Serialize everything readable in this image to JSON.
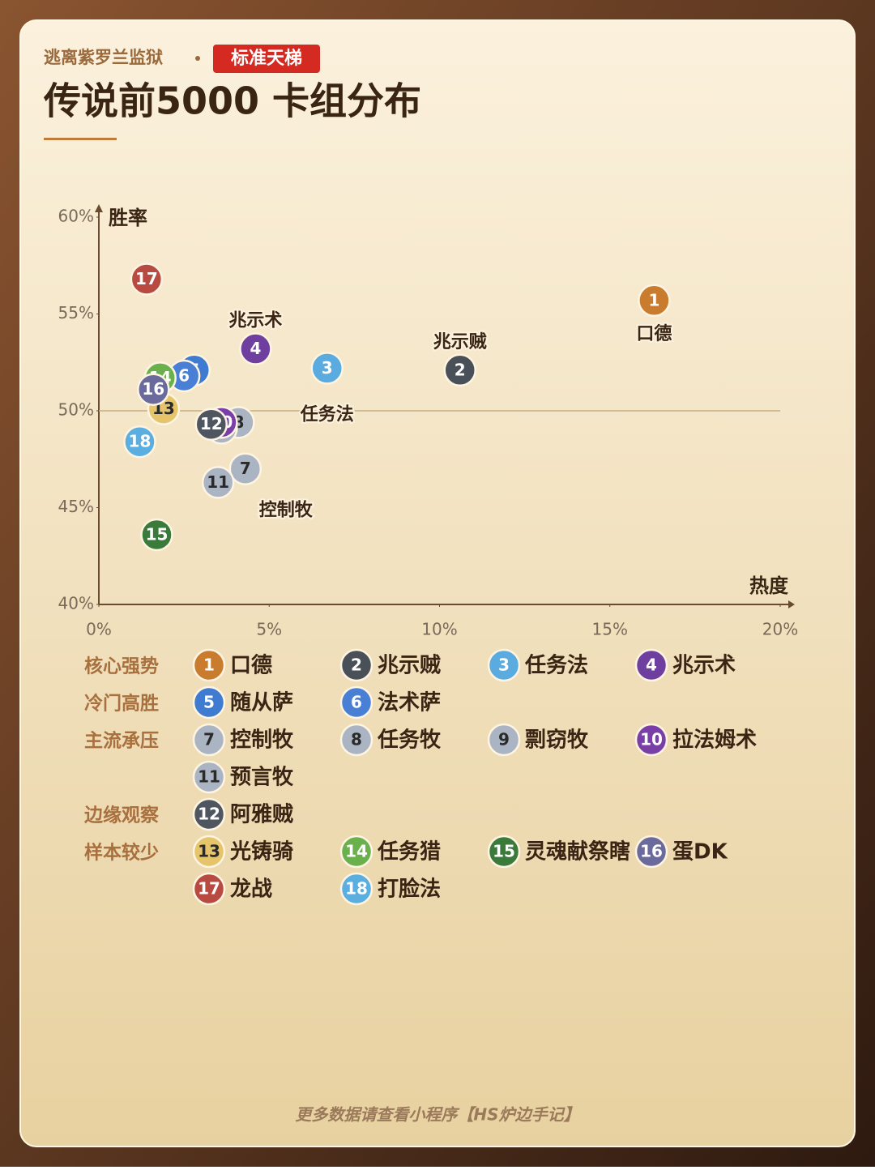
{
  "header": {
    "source": "逃离紫罗兰监狱",
    "badge": "标准天梯",
    "title": "传说前5000 卡组分布"
  },
  "chart_data": {
    "type": "scatter",
    "x_label": "热度",
    "y_label": "胜率",
    "xlim": [
      0,
      20
    ],
    "ylim": [
      40,
      60
    ],
    "xticks": [
      {
        "value": 0,
        "label": "0%"
      },
      {
        "value": 5,
        "label": "5%"
      },
      {
        "value": 10,
        "label": "10%"
      },
      {
        "value": 15,
        "label": "15%"
      },
      {
        "value": 20,
        "label": "20%"
      }
    ],
    "yticks": [
      {
        "value": 40,
        "label": "40%"
      },
      {
        "value": 45,
        "label": "45%"
      },
      {
        "value": 50,
        "label": "50%"
      },
      {
        "value": 55,
        "label": "55%"
      },
      {
        "value": 60,
        "label": "60%"
      }
    ],
    "hline": 50,
    "series": [
      {
        "name": "口德",
        "label": "1",
        "group": "核心强势",
        "color": "#c97b2e",
        "x": [
          16.3
        ],
        "y": [
          55.7
        ]
      },
      {
        "name": "兆示贼",
        "label": "2",
        "group": "核心强势",
        "color": "#4a5058",
        "x": [
          10.6
        ],
        "y": [
          52.1
        ]
      },
      {
        "name": "任务法",
        "label": "3",
        "group": "核心强势",
        "color": "#5aabe0",
        "x": [
          6.7
        ],
        "y": [
          52.2
        ]
      },
      {
        "name": "兆示术",
        "label": "4",
        "group": "核心强势",
        "color": "#6f3fa0",
        "x": [
          4.6
        ],
        "y": [
          53.2
        ]
      },
      {
        "name": "随从萨",
        "label": "5",
        "group": "冷门高胜",
        "color": "#3f7bd0",
        "x": [
          2.8
        ],
        "y": [
          52.1
        ]
      },
      {
        "name": "法术萨",
        "label": "6",
        "group": "冷门高胜",
        "color": "#4a7fd6",
        "x": [
          2.5
        ],
        "y": [
          51.8
        ]
      },
      {
        "name": "控制牧",
        "label": "7",
        "group": "主流承压",
        "color": "#aab4c2",
        "x": [
          4.3
        ],
        "y": [
          47.0
        ]
      },
      {
        "name": "任务牧",
        "label": "8",
        "group": "主流承压",
        "color": "#aab4c2",
        "x": [
          4.1
        ],
        "y": [
          49.4
        ]
      },
      {
        "name": "剽窃牧",
        "label": "9",
        "group": "主流承压",
        "color": "#aab4c2",
        "x": [
          3.6
        ],
        "y": [
          49.1
        ]
      },
      {
        "name": "拉法姆术",
        "label": "10",
        "group": "主流承压",
        "color": "#7a3fa6",
        "x": [
          3.6
        ],
        "y": [
          49.4
        ]
      },
      {
        "name": "预言牧",
        "label": "11",
        "group": "主流承压",
        "color": "#aab4c2",
        "x": [
          3.5
        ],
        "y": [
          46.3
        ]
      },
      {
        "name": "阿雅贼",
        "label": "12",
        "group": "边缘观察",
        "color": "#4f5660",
        "x": [
          3.3
        ],
        "y": [
          49.3
        ]
      },
      {
        "name": "光铸骑",
        "label": "13",
        "group": "样本较少",
        "color": "#e6c46a",
        "x": [
          1.9
        ],
        "y": [
          50.1
        ]
      },
      {
        "name": "任务猎",
        "label": "14",
        "group": "样本较少",
        "color": "#6ab04c",
        "x": [
          1.8
        ],
        "y": [
          51.7
        ]
      },
      {
        "name": "灵魂献祭瞎",
        "label": "15",
        "group": "样本较少",
        "color": "#3a7a3a",
        "x": [
          1.7
        ],
        "y": [
          43.6
        ]
      },
      {
        "name": "蛋DK",
        "label": "16",
        "group": "样本较少",
        "color": "#6a6a9c",
        "x": [
          1.6
        ],
        "y": [
          51.1
        ]
      },
      {
        "name": "龙战",
        "label": "17",
        "group": "样本较少",
        "color": "#b84a42",
        "x": [
          1.4
        ],
        "y": [
          56.8
        ]
      },
      {
        "name": "打脸法",
        "label": "18",
        "group": "样本较少",
        "color": "#5aaee0",
        "x": [
          1.2
        ],
        "y": [
          48.4
        ]
      }
    ]
  },
  "footer": "更多数据请查看小程序【HS炉边手记】"
}
